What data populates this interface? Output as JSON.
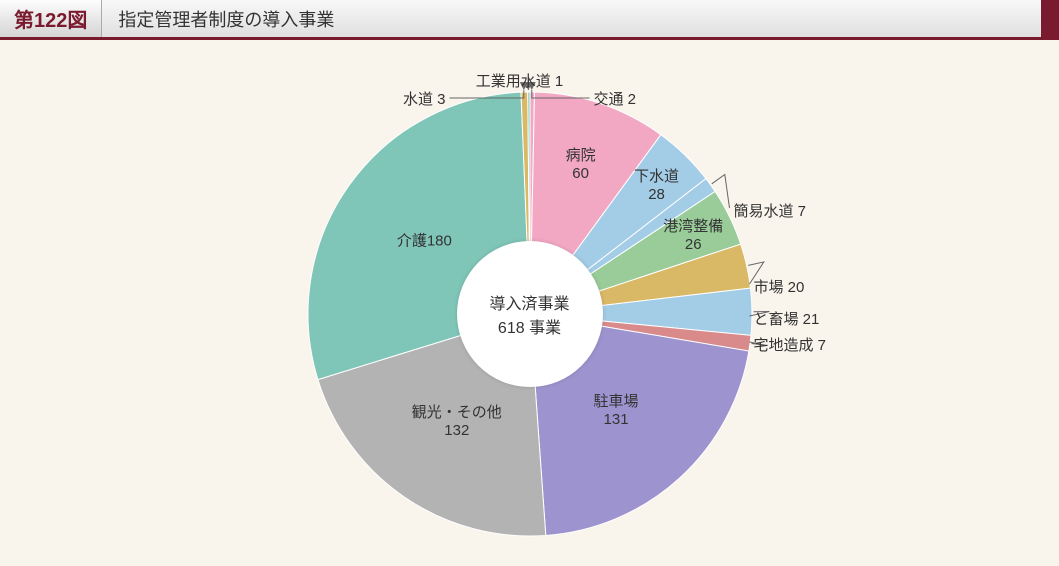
{
  "header": {
    "figure_number": "第122図",
    "title": "指定管理者制度の導入事業"
  },
  "chart": {
    "type": "pie",
    "center_label_line1": "導入済事業",
    "center_label_line2": "618 事業",
    "total": 618,
    "radius": 222,
    "inner_radius": 73,
    "background_color": "#f9f4ec",
    "stroke_color": "#ffffff",
    "stroke_width": 1,
    "slices": [
      {
        "label": "交通",
        "value": 2,
        "color": "#f2a8c3",
        "callout": true
      },
      {
        "label": "病院",
        "value": 60,
        "color": "#f2a8c3",
        "callout": false,
        "two_line": true
      },
      {
        "label": "下水道",
        "value": 28,
        "color": "#a3cce6",
        "callout": false,
        "two_line": true
      },
      {
        "label": "簡易水道",
        "value": 7,
        "color": "#a3cce6",
        "callout": true
      },
      {
        "label": "港湾整備",
        "value": 26,
        "color": "#99cc99",
        "callout": false,
        "two_line": true
      },
      {
        "label": "市場",
        "value": 20,
        "color": "#d9b866",
        "callout": true
      },
      {
        "label": "と畜場",
        "value": 21,
        "color": "#a3cce6",
        "callout": true
      },
      {
        "label": "宅地造成",
        "value": 7,
        "color": "#d98a8a",
        "callout": true
      },
      {
        "label": "駐車場",
        "value": 131,
        "color": "#9d94cf",
        "callout": false,
        "two_line": true
      },
      {
        "label": "観光・その他",
        "value": 132,
        "color": "#b3b3b3",
        "callout": false,
        "two_line": true
      },
      {
        "label": "介護",
        "value": 180,
        "color": "#80c6b8",
        "callout": false,
        "two_line": false,
        "inline_value": true
      },
      {
        "label": "水道",
        "value": 3,
        "color": "#d9b866",
        "callout": true
      },
      {
        "label": "工業用水道",
        "value": 1,
        "color": "#80c6b8",
        "callout": true
      }
    ]
  }
}
